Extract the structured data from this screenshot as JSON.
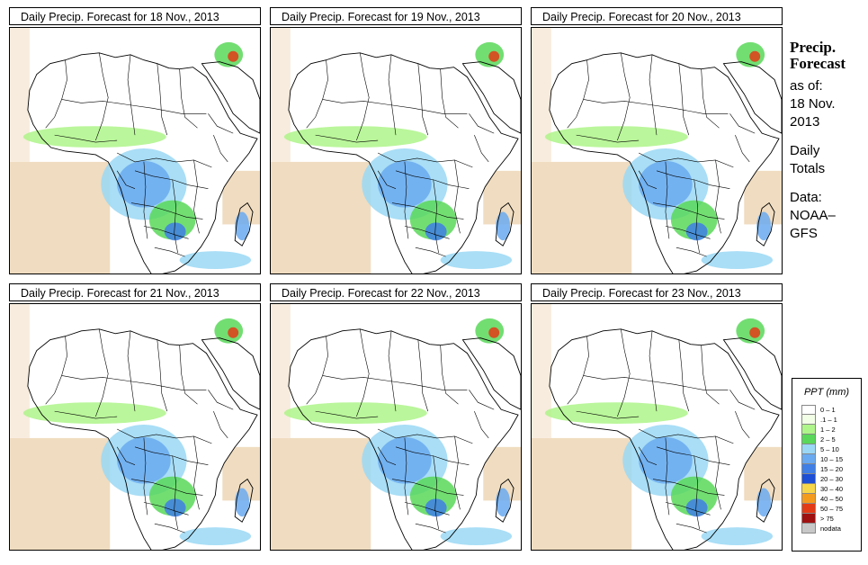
{
  "panels": [
    {
      "title": "Daily Precip. Forecast for  18 Nov., 2013"
    },
    {
      "title": "Daily Precip. Forecast for  19 Nov., 2013"
    },
    {
      "title": "Daily Precip. Forecast for  20 Nov., 2013"
    },
    {
      "title": "Daily Precip. Forecast for  21 Nov., 2013"
    },
    {
      "title": "Daily Precip. Forecast for  22 Nov., 2013"
    },
    {
      "title": "Daily Precip. Forecast for  23 Nov., 2013"
    }
  ],
  "side": {
    "heading1": "Precip.",
    "heading2": "Forecast",
    "asof_label": "as of:",
    "asof_date1": "18 Nov.",
    "asof_date2": "2013",
    "totals1": "Daily",
    "totals2": "Totals",
    "data1": "Data:",
    "data2": "NOAA–",
    "data3": "GFS"
  },
  "legend": {
    "title": "PPT (mm)",
    "items": [
      {
        "label": "0 – 1",
        "color": "#ffffff"
      },
      {
        "label": ".1 – 1",
        "color": "#f2ffe6"
      },
      {
        "label": "1 – 2",
        "color": "#aef58a"
      },
      {
        "label": "2 – 5",
        "color": "#59d859"
      },
      {
        "label": "5 – 10",
        "color": "#9ad8f5"
      },
      {
        "label": "10 – 15",
        "color": "#6aaaf0"
      },
      {
        "label": "15 – 20",
        "color": "#3f7fe6"
      },
      {
        "label": "20 – 30",
        "color": "#1c4fd6"
      },
      {
        "label": "30 – 40",
        "color": "#f6d64a"
      },
      {
        "label": "40 – 50",
        "color": "#f49b1e"
      },
      {
        "label": "50 – 75",
        "color": "#e33b16"
      },
      {
        "label": "> 75",
        "color": "#a01010"
      },
      {
        "label": "nodata",
        "color": "#c8c8c8"
      }
    ]
  }
}
